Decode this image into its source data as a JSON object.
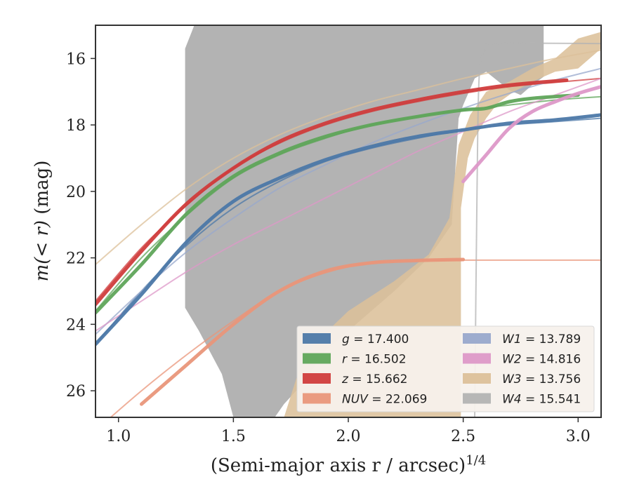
{
  "chart_data": {
    "type": "line",
    "xlabel": "(Semi-major axis r / arcsec)",
    "xlabel_exponent": "1/4",
    "ylabel_prefix": "m(< r)",
    "ylabel_suffix": " (mag)",
    "xlim": [
      0.9,
      3.1
    ],
    "ylim": [
      26.8,
      15.0
    ],
    "y_inverted": true,
    "x_ticks": [
      1.0,
      1.5,
      2.0,
      2.5,
      3.0
    ],
    "x_tick_labels": [
      "1.0",
      "1.5",
      "2.0",
      "2.5",
      "3.0"
    ],
    "y_ticks": [
      16,
      18,
      20,
      22,
      24,
      26
    ],
    "y_tick_labels": [
      "16",
      "18",
      "20",
      "22",
      "24",
      "26"
    ],
    "grid": false,
    "legend_position": "lower-right",
    "legend": [
      {
        "var": "g",
        "value": "17.400",
        "color": "#4c78a8"
      },
      {
        "var": "r",
        "value": "16.502",
        "color": "#5fa55a"
      },
      {
        "var": "z",
        "value": "15.662",
        "color": "#d03c3c"
      },
      {
        "var": "NUV",
        "value": "22.069",
        "color": "#e9967a"
      },
      {
        "var": "W1",
        "value": "13.789",
        "color": "#98a8cc"
      },
      {
        "var": "W2",
        "value": "14.816",
        "color": "#dd98c8"
      },
      {
        "var": "W3",
        "value": "13.756",
        "color": "#dcc09a"
      },
      {
        "var": "W4",
        "value": "15.541",
        "color": "#b3b3b3"
      }
    ],
    "series": [
      {
        "name": "g",
        "color": "#4c78a8",
        "data": [
          [
            0.9,
            24.6
          ],
          [
            1.1,
            23.1
          ],
          [
            1.3,
            21.5
          ],
          [
            1.5,
            20.3
          ],
          [
            1.7,
            19.6
          ],
          [
            1.9,
            19.05
          ],
          [
            2.1,
            18.65
          ],
          [
            2.3,
            18.35
          ],
          [
            2.5,
            18.15
          ],
          [
            2.7,
            17.95
          ],
          [
            2.9,
            17.85
          ],
          [
            3.1,
            17.7
          ]
        ],
        "model": [
          [
            0.9,
            24.6
          ],
          [
            1.1,
            23.0
          ],
          [
            1.3,
            21.6
          ],
          [
            1.5,
            20.5
          ],
          [
            1.7,
            19.7
          ],
          [
            1.9,
            19.1
          ],
          [
            2.1,
            18.7
          ],
          [
            2.3,
            18.4
          ],
          [
            2.5,
            18.15
          ],
          [
            2.7,
            18.0
          ],
          [
            2.9,
            17.9
          ],
          [
            3.1,
            17.8
          ]
        ]
      },
      {
        "name": "r",
        "color": "#5fa55a",
        "data": [
          [
            0.9,
            23.65
          ],
          [
            1.1,
            22.2
          ],
          [
            1.3,
            20.65
          ],
          [
            1.5,
            19.55
          ],
          [
            1.7,
            18.85
          ],
          [
            1.9,
            18.35
          ],
          [
            2.1,
            18.0
          ],
          [
            2.3,
            17.75
          ],
          [
            2.5,
            17.55
          ],
          [
            2.6,
            17.5
          ],
          [
            2.7,
            17.3
          ],
          [
            2.8,
            17.2
          ],
          [
            3.0,
            17.1
          ]
        ],
        "model": [
          [
            0.9,
            23.6
          ],
          [
            1.1,
            22.0
          ],
          [
            1.3,
            20.7
          ],
          [
            1.5,
            19.6
          ],
          [
            1.7,
            18.9
          ],
          [
            1.9,
            18.4
          ],
          [
            2.1,
            18.0
          ],
          [
            2.3,
            17.75
          ],
          [
            2.5,
            17.55
          ],
          [
            2.7,
            17.4
          ],
          [
            2.9,
            17.25
          ],
          [
            3.1,
            17.15
          ]
        ]
      },
      {
        "name": "z",
        "color": "#d03c3c",
        "data": [
          [
            0.9,
            23.4
          ],
          [
            1.1,
            21.8
          ],
          [
            1.3,
            20.35
          ],
          [
            1.5,
            19.3
          ],
          [
            1.7,
            18.5
          ],
          [
            1.9,
            17.95
          ],
          [
            2.1,
            17.55
          ],
          [
            2.3,
            17.25
          ],
          [
            2.5,
            17.0
          ],
          [
            2.7,
            16.8
          ],
          [
            2.95,
            16.65
          ]
        ],
        "model": [
          [
            0.9,
            23.3
          ],
          [
            1.1,
            21.7
          ],
          [
            1.3,
            20.4
          ],
          [
            1.5,
            19.3
          ],
          [
            1.7,
            18.55
          ],
          [
            1.9,
            18.0
          ],
          [
            2.1,
            17.6
          ],
          [
            2.3,
            17.3
          ],
          [
            2.5,
            17.05
          ],
          [
            2.7,
            16.85
          ],
          [
            2.9,
            16.72
          ],
          [
            3.1,
            16.6
          ]
        ]
      },
      {
        "name": "NUV",
        "color": "#e9967a",
        "data": [
          [
            1.1,
            26.4
          ],
          [
            1.3,
            25.2
          ],
          [
            1.5,
            24.0
          ],
          [
            1.7,
            23.0
          ],
          [
            1.9,
            22.4
          ],
          [
            2.1,
            22.15
          ],
          [
            2.3,
            22.08
          ],
          [
            2.5,
            22.05
          ]
        ],
        "model": [
          [
            0.9,
            27.2
          ],
          [
            1.1,
            26.0
          ],
          [
            1.3,
            24.9
          ],
          [
            1.5,
            23.9
          ],
          [
            1.7,
            23.0
          ],
          [
            1.9,
            22.45
          ],
          [
            2.1,
            22.15
          ],
          [
            2.3,
            22.08
          ],
          [
            2.5,
            22.07
          ],
          [
            3.1,
            22.07
          ]
        ]
      },
      {
        "name": "W1",
        "color": "#98a8cc",
        "data": [],
        "model": [
          [
            0.9,
            24.3
          ],
          [
            1.1,
            23.0
          ],
          [
            1.3,
            21.8
          ],
          [
            1.5,
            20.8
          ],
          [
            1.7,
            19.9
          ],
          [
            1.9,
            19.2
          ],
          [
            2.1,
            18.55
          ],
          [
            2.3,
            18.0
          ],
          [
            2.5,
            17.5
          ],
          [
            2.7,
            17.05
          ],
          [
            2.9,
            16.65
          ],
          [
            3.1,
            16.3
          ]
        ]
      },
      {
        "name": "W2",
        "color": "#dd98c8",
        "data": [
          [
            2.5,
            19.7
          ],
          [
            2.6,
            18.9
          ],
          [
            2.7,
            18.1
          ],
          [
            2.8,
            17.6
          ],
          [
            2.9,
            17.3
          ],
          [
            3.0,
            17.05
          ],
          [
            3.1,
            16.85
          ]
        ],
        "model": [
          [
            0.9,
            24.2
          ],
          [
            1.1,
            23.3
          ],
          [
            1.3,
            22.4
          ],
          [
            1.5,
            21.6
          ],
          [
            1.7,
            20.9
          ],
          [
            1.9,
            20.2
          ],
          [
            2.1,
            19.5
          ],
          [
            2.3,
            18.8
          ],
          [
            2.5,
            18.2
          ],
          [
            2.7,
            17.6
          ],
          [
            2.9,
            17.1
          ],
          [
            3.1,
            16.6
          ]
        ]
      },
      {
        "name": "W3",
        "color": "#dcc09a",
        "data": [],
        "model": [
          [
            0.9,
            22.2
          ],
          [
            1.1,
            21.0
          ],
          [
            1.3,
            19.9
          ],
          [
            1.5,
            19.0
          ],
          [
            1.7,
            18.3
          ],
          [
            1.9,
            17.75
          ],
          [
            2.1,
            17.3
          ],
          [
            2.3,
            16.95
          ],
          [
            2.5,
            16.6
          ],
          [
            2.7,
            16.3
          ],
          [
            2.9,
            16.0
          ],
          [
            3.1,
            15.75
          ]
        ]
      },
      {
        "name": "W4",
        "color": "#b3b3b3",
        "data": [],
        "model": [
          [
            2.55,
            26.8
          ],
          [
            2.56,
            20.0
          ],
          [
            2.57,
            16.5
          ],
          [
            2.6,
            15.7
          ],
          [
            2.65,
            15.55
          ],
          [
            3.1,
            15.55
          ]
        ]
      }
    ],
    "bands": [
      {
        "name": "W4",
        "color": "#a8a8a8",
        "polygon": [
          [
            1.29,
            15.7
          ],
          [
            1.33,
            15.0
          ],
          [
            2.85,
            15.0
          ],
          [
            2.85,
            16.55
          ],
          [
            2.8,
            16.8
          ],
          [
            2.75,
            17.1
          ],
          [
            2.7,
            16.95
          ],
          [
            2.6,
            16.4
          ],
          [
            2.55,
            16.6
          ],
          [
            2.5,
            17.4
          ],
          [
            2.48,
            17.8
          ],
          [
            2.45,
            21.0
          ],
          [
            2.35,
            22.0
          ],
          [
            2.2,
            23.0
          ],
          [
            2.0,
            24.2
          ],
          [
            1.9,
            24.8
          ],
          [
            1.8,
            25.8
          ],
          [
            1.72,
            26.4
          ],
          [
            1.68,
            26.8
          ],
          [
            1.62,
            26.8
          ],
          [
            1.5,
            26.8
          ],
          [
            1.45,
            25.5
          ],
          [
            1.35,
            24.2
          ],
          [
            1.29,
            23.5
          ]
        ]
      },
      {
        "name": "W3",
        "color": "#dcc09a",
        "polygon": [
          [
            1.72,
            26.8
          ],
          [
            1.78,
            25.5
          ],
          [
            1.85,
            24.6
          ],
          [
            2.0,
            23.6
          ],
          [
            2.2,
            22.7
          ],
          [
            2.35,
            21.9
          ],
          [
            2.44,
            20.8
          ],
          [
            2.48,
            18.6
          ],
          [
            2.53,
            17.7
          ],
          [
            2.6,
            17.0
          ],
          [
            2.7,
            16.7
          ],
          [
            2.8,
            16.3
          ],
          [
            2.9,
            16.0
          ],
          [
            3.0,
            15.4
          ],
          [
            3.1,
            15.2
          ],
          [
            3.1,
            15.7
          ],
          [
            3.0,
            16.3
          ],
          [
            2.9,
            16.4
          ],
          [
            2.8,
            16.7
          ],
          [
            2.72,
            17.0
          ],
          [
            2.65,
            17.35
          ],
          [
            2.6,
            17.8
          ],
          [
            2.55,
            18.4
          ],
          [
            2.52,
            19.0
          ],
          [
            2.49,
            20.5
          ],
          [
            2.49,
            26.8
          ]
        ]
      }
    ]
  }
}
